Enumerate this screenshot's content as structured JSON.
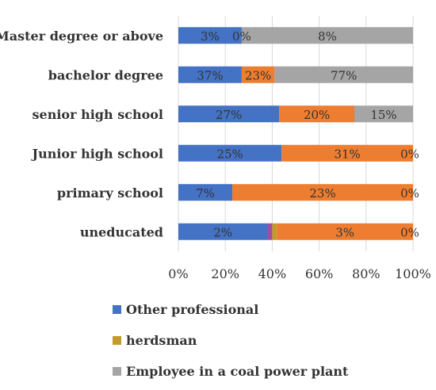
{
  "chart_data": {
    "type": "bar",
    "orientation": "horizontal",
    "stacked": "percent",
    "categories": [
      "Master degree or above",
      "bachelor degree",
      "senior high school",
      "Junior high school",
      "primary school",
      "uneducated"
    ],
    "series": [
      {
        "name": "Other professional",
        "color": "#4472C4",
        "values": [
          27,
          27,
          43,
          44,
          23,
          38
        ],
        "labels": [
          "3%",
          "37%",
          "27%",
          "25%",
          "7%",
          "2%"
        ]
      },
      {
        "name": "",
        "color": "#A04DA3",
        "values": [
          0,
          0,
          0,
          0,
          0,
          2
        ],
        "labels": [
          "",
          "",
          "",
          "",
          "",
          ""
        ]
      },
      {
        "name": "herdsman",
        "color": "#C39A2E",
        "values": [
          0,
          0,
          0,
          0,
          0,
          2
        ],
        "labels": [
          "",
          "",
          "",
          "",
          "",
          ""
        ]
      },
      {
        "name": "",
        "color": "#ED7D31",
        "values": [
          0,
          14,
          32,
          56,
          77,
          58
        ],
        "labels": [
          "0%",
          "23%",
          "20%",
          "31%",
          "23%",
          "3%"
        ]
      },
      {
        "name": "Employee in a coal power plant",
        "color": "#A5A5A5",
        "values": [
          73,
          59,
          25,
          0,
          0,
          0
        ],
        "labels": [
          "8%",
          "77%",
          "15%",
          "0%",
          "0%",
          "0%"
        ]
      }
    ],
    "xlim": [
      0,
      100
    ],
    "xticks": [
      "0%",
      "20%",
      "40%",
      "60%",
      "80%",
      "100%"
    ],
    "grid": "vertical",
    "legend_position": "bottom"
  }
}
